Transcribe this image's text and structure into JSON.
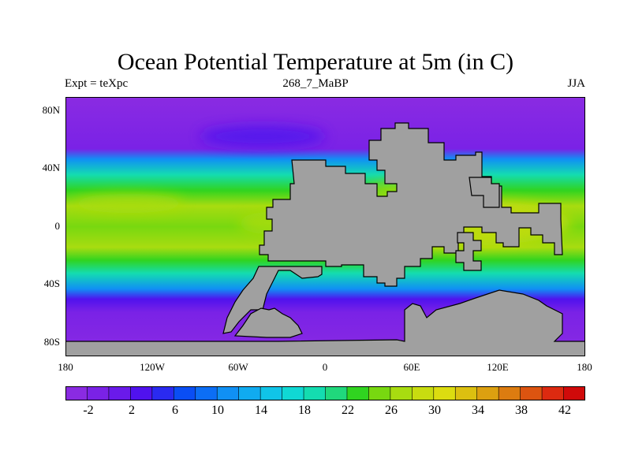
{
  "title": "Ocean Potential Temperature at 5m (in C)",
  "subtitle": {
    "left": "Expt = teXpc",
    "center": "268_7_MaBP",
    "right": "JJA"
  },
  "axes": {
    "y_ticks": [
      "80N",
      "40N",
      "0",
      "40S",
      "80S"
    ],
    "x_ticks": [
      "180",
      "120W",
      "60W",
      "0",
      "60E",
      "120E",
      "180"
    ]
  },
  "chart_data": {
    "type": "heatmap",
    "title": "Ocean Potential Temperature at 5m (in C)",
    "variable": "ocean potential temperature at 5m",
    "units": "C",
    "x_range": [
      -180,
      180
    ],
    "y_range": [
      -90,
      90
    ],
    "colorbar": {
      "levels": [
        -4,
        -2,
        0,
        2,
        4,
        6,
        8,
        10,
        12,
        14,
        16,
        18,
        20,
        22,
        24,
        26,
        28,
        30,
        32,
        34,
        36,
        38,
        40,
        42,
        44
      ],
      "labels": [
        "-2",
        "2",
        "6",
        "10",
        "14",
        "18",
        "22",
        "26",
        "30",
        "34",
        "38",
        "42"
      ],
      "colors": [
        "#8a2be2",
        "#7a22e6",
        "#6a1aea",
        "#5012ee",
        "#2a2af0",
        "#0a4ef4",
        "#0c6ef5",
        "#1090f4",
        "#10abf0",
        "#10c4e8",
        "#10d8d4",
        "#14dcb0",
        "#20d87c",
        "#30d420",
        "#78d810",
        "#a8dc10",
        "#c8dc10",
        "#dcdc10",
        "#dcc010",
        "#dca010",
        "#dc7c10",
        "#dc5410",
        "#dc2a10",
        "#d00a0a"
      ]
    },
    "observations": [
      "Tropical waters reach about 26-30 C",
      "Polar waters are about -2 to 2 C",
      "Land masses shown in gray"
    ]
  }
}
